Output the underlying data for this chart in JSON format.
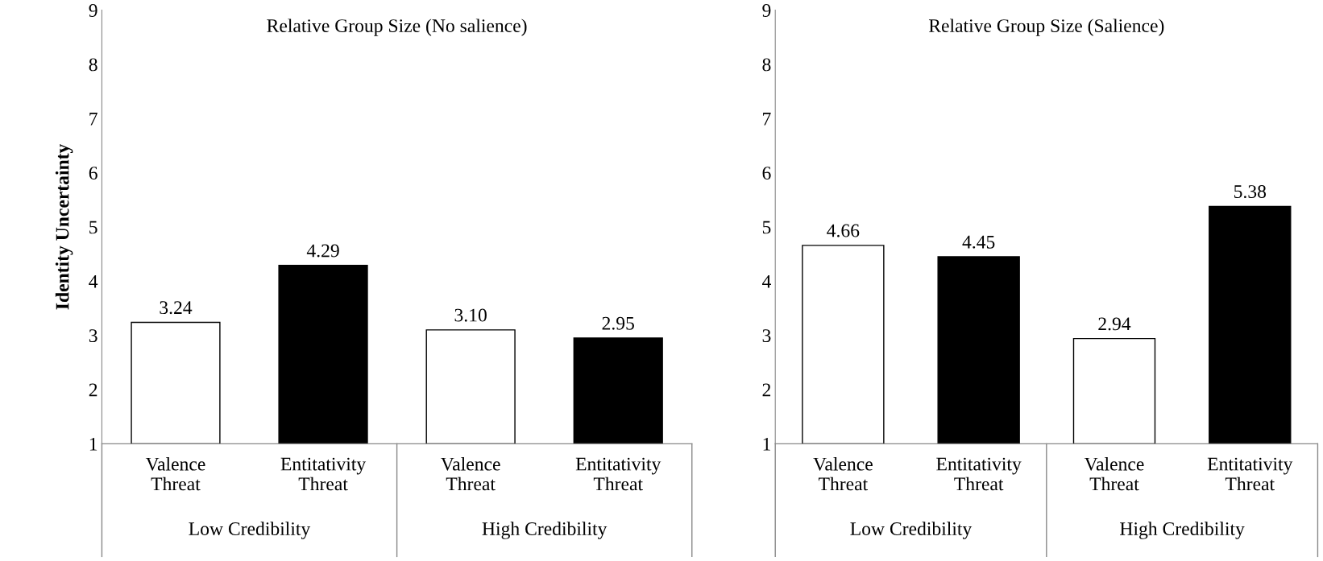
{
  "chart_data": [
    {
      "type": "bar",
      "title": "Relative Group Size (No salience)",
      "ylabel": "Identity Uncertainty",
      "categories": [
        "Valence\nThreat",
        "Entitativity\nThreat",
        "Valence\nThreat",
        "Entitativity\nThreat"
      ],
      "values": [
        3.24,
        4.29,
        3.1,
        2.95
      ],
      "value_labels": [
        "3.24",
        "4.29",
        "3.10",
        "2.95"
      ],
      "colors": [
        "#ffffff",
        "#000000",
        "#ffffff",
        "#000000"
      ],
      "ylim": [
        1,
        9
      ],
      "yticks": [
        1,
        2,
        3,
        4,
        5,
        6,
        7,
        8,
        9
      ],
      "grid": false,
      "annotations": [
        "Low Credibility",
        "High Credibility"
      ]
    },
    {
      "type": "bar",
      "title": "Relative Group Size (Salience)",
      "categories": [
        "Valence\nThreat",
        "Entitativity\nThreat",
        "Valence\nThreat",
        "Entitativity\nThreat"
      ],
      "values": [
        4.66,
        4.45,
        2.94,
        5.38
      ],
      "value_labels": [
        "4.66",
        "4.45",
        "2.94",
        "5.38"
      ],
      "colors": [
        "#ffffff",
        "#000000",
        "#ffffff",
        "#000000"
      ],
      "ylim": [
        1,
        9
      ],
      "yticks": [
        1,
        2,
        3,
        4,
        5,
        6,
        7,
        8,
        9
      ],
      "grid": false,
      "annotations": [
        "Low Credibility",
        "High Credibility"
      ]
    }
  ]
}
